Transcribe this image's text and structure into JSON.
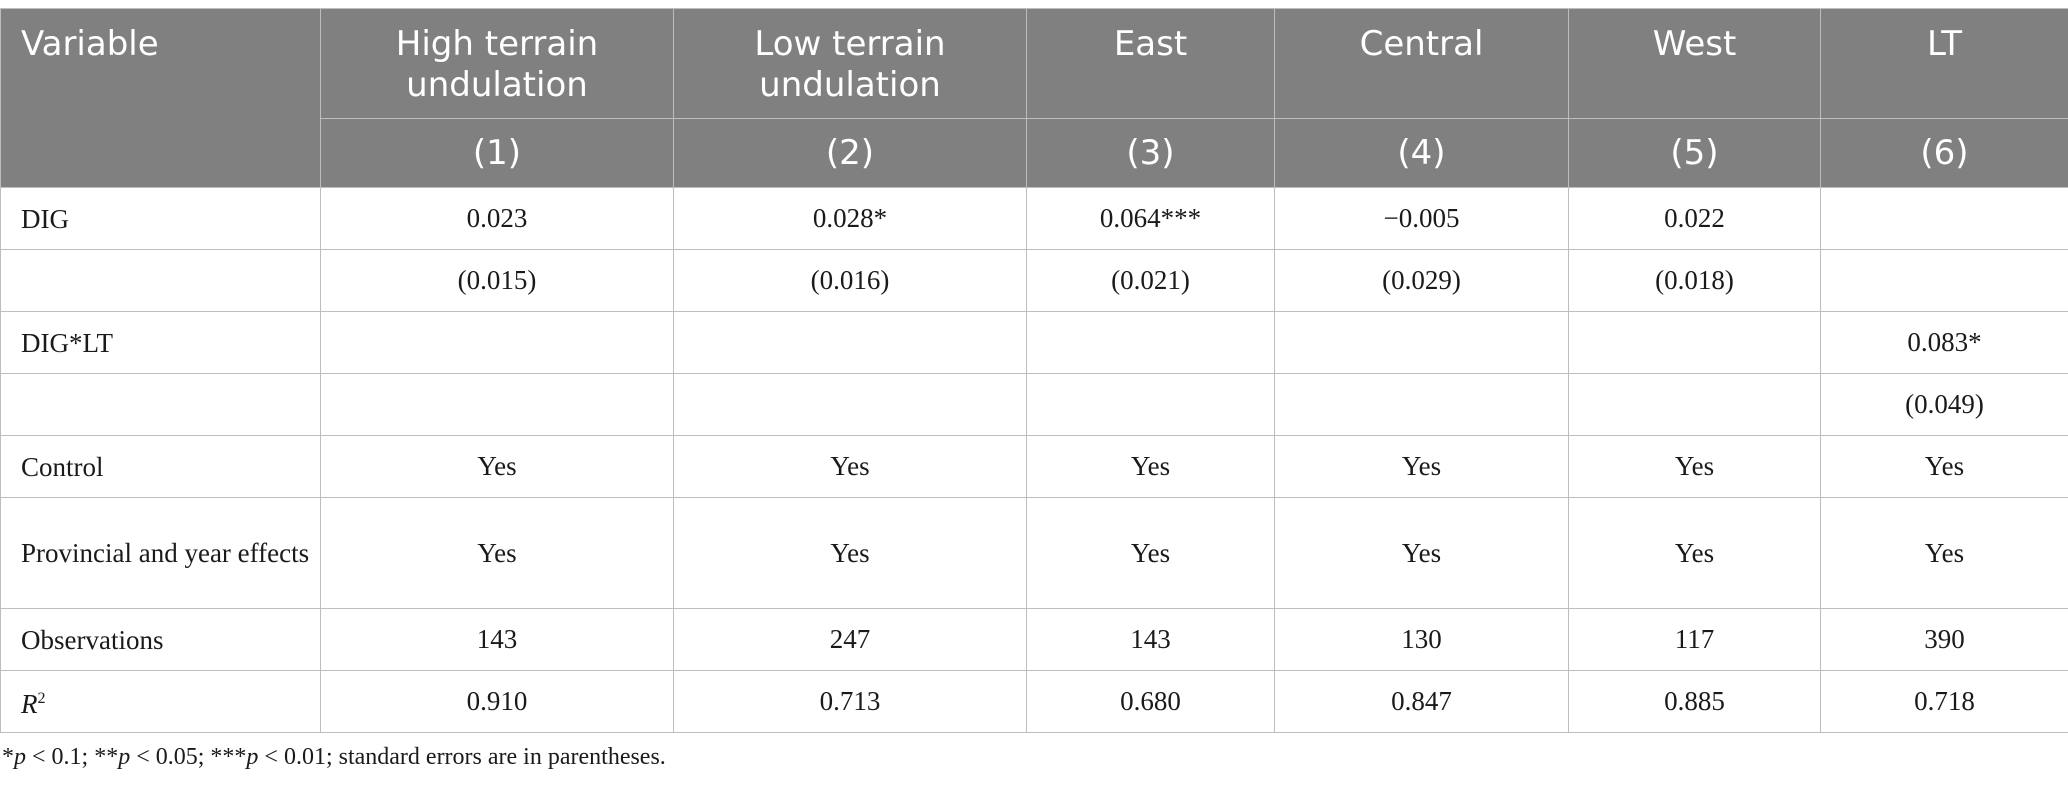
{
  "table": {
    "columns": [
      {
        "title": "Variable",
        "num": ""
      },
      {
        "title": "High terrain undulation",
        "num": "(1)"
      },
      {
        "title": "Low terrain undulation",
        "num": "(2)"
      },
      {
        "title": "East",
        "num": "(3)"
      },
      {
        "title": "Central",
        "num": "(4)"
      },
      {
        "title": "West",
        "num": "(5)"
      },
      {
        "title": "LT",
        "num": "(6)"
      }
    ],
    "rows": [
      {
        "label": "DIG",
        "cells": [
          "0.023",
          "0.028*",
          "0.064***",
          "−0.005",
          "0.022",
          ""
        ]
      },
      {
        "label": "",
        "cells": [
          "(0.015)",
          "(0.016)",
          "(0.021)",
          "(0.029)",
          "(0.018)",
          ""
        ]
      },
      {
        "label": "DIG*LT",
        "cells": [
          "",
          "",
          "",
          "",
          "",
          "0.083*"
        ]
      },
      {
        "label": "",
        "cells": [
          "",
          "",
          "",
          "",
          "",
          "(0.049)"
        ]
      },
      {
        "label": "Control",
        "cells": [
          "Yes",
          "Yes",
          "Yes",
          "Yes",
          "Yes",
          "Yes"
        ]
      },
      {
        "label": "Provincial and year effects",
        "cells": [
          "Yes",
          "Yes",
          "Yes",
          "Yes",
          "Yes",
          "Yes"
        ]
      },
      {
        "label": "Observations",
        "cells": [
          "143",
          "247",
          "143",
          "130",
          "117",
          "390"
        ]
      },
      {
        "label_italic": "R",
        "label_sup": "2",
        "cells": [
          "0.910",
          "0.713",
          "0.680",
          "0.847",
          "0.885",
          "0.718"
        ]
      }
    ]
  },
  "footnote": {
    "sig1_star": "*",
    "sig1_p": "p",
    "sig1_val": " < 0.1; ",
    "sig2_star": "**",
    "sig2_p": "p",
    "sig2_val": " < 0.05; ",
    "sig3_star": "***",
    "sig3_p": "p",
    "sig3_val": " < 0.01; standard errors are in parentheses."
  }
}
